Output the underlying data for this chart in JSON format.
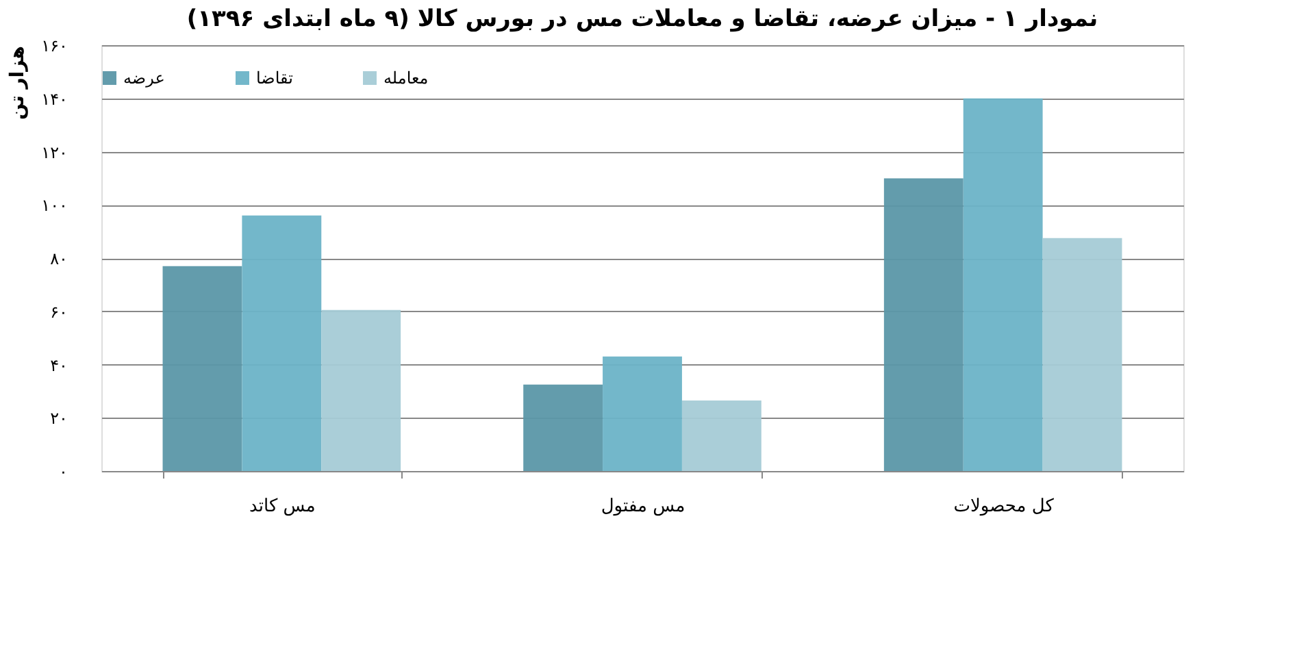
{
  "chart_data": {
    "type": "bar",
    "title": "نمودار ۱ - میزان عرضه، تقاضا و معاملات مس در بورس کالا (۹ ماه ابتدای ۱۳۹۶)",
    "ylabel": "هزار تن",
    "categories": [
      "مس کاتد",
      "مس مفتول",
      "کل محصولات"
    ],
    "series": [
      {
        "name": "عرضه",
        "color": "#5b97a8",
        "values": [
          77,
          32.5,
          110
        ]
      },
      {
        "name": "تقاضا",
        "color": "#6cb3c7",
        "values": [
          96,
          43,
          140
        ]
      },
      {
        "name": "معامله",
        "color": "#a5cbd6",
        "values": [
          60.5,
          26.5,
          87.5
        ]
      }
    ],
    "ylim": [
      0,
      160
    ],
    "yticks": [
      {
        "value": 0,
        "label": "۰"
      },
      {
        "value": 20,
        "label": "۲۰"
      },
      {
        "value": 40,
        "label": "۴۰"
      },
      {
        "value": 60,
        "label": "۶۰"
      },
      {
        "value": 80,
        "label": "۸۰"
      },
      {
        "value": 100,
        "label": "۱۰۰"
      },
      {
        "value": 120,
        "label": "۱۲۰"
      },
      {
        "value": 140,
        "label": "۱۴۰"
      },
      {
        "value": 160,
        "label": "۱۶۰"
      }
    ],
    "grid": "y",
    "legend": "top"
  }
}
